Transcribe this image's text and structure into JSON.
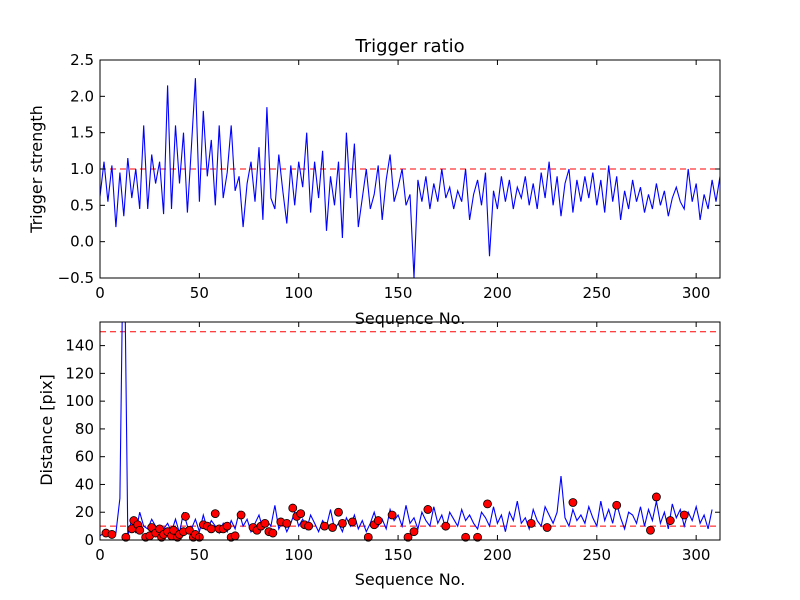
{
  "figure_colors": {
    "line": "#0000ff",
    "threshold": "#ff0000",
    "marker_fill": "#ff0000",
    "marker_edge": "#000000",
    "axis": "#000000"
  },
  "chart_data": [
    {
      "type": "line",
      "title": "Trigger ratio",
      "xlabel": "Sequence No.",
      "ylabel": "Trigger strength",
      "xlim": [
        0,
        312
      ],
      "ylim": [
        -0.5,
        2.5
      ],
      "xticks": [
        0,
        50,
        100,
        150,
        200,
        250,
        300
      ],
      "yticks": [
        -0.5,
        0.0,
        0.5,
        1.0,
        1.5,
        2.0,
        2.5
      ],
      "xtick_labels": [
        "0",
        "50",
        "100",
        "150",
        "200",
        "250",
        "300"
      ],
      "ytick_labels": [
        "−0.5",
        "0.0",
        "0.5",
        "1.0",
        "1.5",
        "2.0",
        "2.5"
      ],
      "threshold": 1.0,
      "series": [
        {
          "name": "trigger strength",
          "x_start": 0,
          "x_step": 2,
          "values": [
            0.62,
            1.1,
            0.55,
            1.05,
            0.2,
            0.95,
            0.35,
            1.15,
            0.6,
            1.0,
            0.45,
            1.6,
            0.45,
            1.2,
            0.8,
            1.1,
            0.38,
            2.15,
            0.45,
            1.6,
            0.8,
            1.5,
            0.4,
            1.3,
            2.25,
            0.55,
            1.8,
            0.9,
            1.4,
            0.5,
            1.6,
            0.6,
            0.95,
            1.6,
            0.7,
            0.9,
            0.2,
            0.8,
            1.1,
            0.55,
            1.3,
            0.3,
            1.85,
            0.6,
            0.45,
            1.2,
            0.7,
            0.25,
            1.05,
            0.5,
            1.1,
            0.75,
            1.5,
            0.4,
            1.1,
            0.6,
            1.25,
            0.15,
            0.9,
            0.5,
            1.1,
            0.05,
            1.5,
            0.6,
            1.35,
            0.2,
            0.6,
            1.0,
            0.45,
            0.65,
            1.05,
            0.3,
            0.85,
            1.2,
            0.55,
            0.75,
            1.0,
            0.5,
            0.65,
            -0.5,
            0.85,
            0.55,
            0.9,
            0.45,
            0.8,
            0.55,
            1.0,
            0.6,
            0.75,
            0.45,
            0.7,
            0.55,
            1.0,
            0.3,
            0.65,
            0.85,
            0.5,
            0.95,
            -0.2,
            0.7,
            0.45,
            0.9,
            0.55,
            0.85,
            0.45,
            0.75,
            0.6,
            0.9,
            0.5,
            0.8,
            0.45,
            0.95,
            0.6,
            1.1,
            0.5,
            0.9,
            0.35,
            0.8,
            1.0,
            0.4,
            0.85,
            0.55,
            0.9,
            0.6,
            0.95,
            0.5,
            0.85,
            0.4,
            1.05,
            0.55,
            0.9,
            0.3,
            0.7,
            0.45,
            0.85,
            0.55,
            0.75,
            0.4,
            0.65,
            0.45,
            0.8,
            0.5,
            0.7,
            0.35,
            0.6,
            0.75,
            0.55,
            0.45,
            1.0,
            0.55,
            0.8,
            0.3,
            0.65,
            0.45,
            0.85,
            0.55,
            0.9
          ]
        }
      ]
    },
    {
      "type": "line",
      "title": "",
      "xlabel": "Sequence No.",
      "ylabel": "Distance [pix]",
      "xlim": [
        0,
        312
      ],
      "ylim": [
        0,
        157
      ],
      "xticks": [
        0,
        50,
        100,
        150,
        200,
        250,
        300
      ],
      "yticks": [
        0,
        20,
        40,
        60,
        80,
        100,
        120,
        140
      ],
      "xtick_labels": [
        "0",
        "50",
        "100",
        "150",
        "200",
        "250",
        "300"
      ],
      "ytick_labels": [
        "0",
        "20",
        "40",
        "60",
        "80",
        "100",
        "120",
        "140"
      ],
      "thresholds": [
        10,
        150
      ],
      "series": [
        {
          "name": "distance",
          "x_start": 0,
          "x_step": 2,
          "values": [
            3,
            5,
            5,
            4,
            5,
            30,
            250,
            3,
            15,
            5,
            20,
            10,
            8,
            15,
            10,
            6,
            8,
            12,
            6,
            15,
            5,
            20,
            10,
            8,
            15,
            6,
            18,
            8,
            14,
            10,
            5,
            12,
            6,
            14,
            8,
            20,
            10,
            15,
            6,
            12,
            18,
            8,
            14,
            10,
            25,
            8,
            14,
            6,
            12,
            20,
            10,
            15,
            8,
            18,
            12,
            6,
            14,
            10,
            22,
            8,
            12,
            6,
            16,
            10,
            18,
            8,
            14,
            6,
            12,
            20,
            10,
            15,
            8,
            22,
            14,
            18,
            10,
            25,
            12,
            16,
            8,
            20,
            14,
            10,
            24,
            12,
            18,
            8,
            20,
            15,
            10,
            22,
            14,
            18,
            12,
            8,
            20,
            16,
            10,
            24,
            12,
            18,
            6,
            20,
            14,
            28,
            12,
            16,
            8,
            22,
            14,
            10,
            24,
            18,
            12,
            20,
            46,
            16,
            10,
            22,
            14,
            18,
            12,
            24,
            16,
            10,
            28,
            14,
            22,
            12,
            26,
            16,
            8,
            20,
            18,
            12,
            24,
            10,
            22,
            14,
            28,
            12,
            20,
            8,
            26,
            16,
            22,
            10,
            20,
            14,
            24,
            12,
            18,
            8,
            22
          ]
        },
        {
          "name": "below threshold markers",
          "points": [
            [
              3,
              5
            ],
            [
              6,
              4
            ],
            [
              13,
              2
            ],
            [
              16,
              8
            ],
            [
              17,
              14
            ],
            [
              19,
              11
            ],
            [
              20,
              7
            ],
            [
              23,
              2
            ],
            [
              25,
              3
            ],
            [
              26,
              9
            ],
            [
              28,
              5
            ],
            [
              30,
              8
            ],
            [
              31,
              2
            ],
            [
              32,
              4
            ],
            [
              34,
              6
            ],
            [
              36,
              3
            ],
            [
              37,
              7
            ],
            [
              39,
              2
            ],
            [
              40,
              4
            ],
            [
              42,
              6
            ],
            [
              43,
              17
            ],
            [
              45,
              7
            ],
            [
              47,
              2
            ],
            [
              48,
              4
            ],
            [
              50,
              2
            ],
            [
              52,
              11
            ],
            [
              54,
              10
            ],
            [
              56,
              8
            ],
            [
              58,
              19
            ],
            [
              60,
              8
            ],
            [
              62,
              8
            ],
            [
              64,
              10
            ],
            [
              66,
              2
            ],
            [
              68,
              3
            ],
            [
              71,
              18
            ],
            [
              77,
              9
            ],
            [
              79,
              7
            ],
            [
              81,
              10
            ],
            [
              83,
              12
            ],
            [
              85,
              6
            ],
            [
              87,
              5
            ],
            [
              91,
              13
            ],
            [
              94,
              12
            ],
            [
              97,
              23
            ],
            [
              99,
              17
            ],
            [
              101,
              19
            ],
            [
              103,
              11
            ],
            [
              105,
              10
            ],
            [
              113,
              10
            ],
            [
              117,
              9
            ],
            [
              120,
              20
            ],
            [
              122,
              12
            ],
            [
              127,
              13
            ],
            [
              135,
              2
            ],
            [
              138,
              11
            ],
            [
              140,
              14
            ],
            [
              147,
              18
            ],
            [
              155,
              2
            ],
            [
              158,
              6
            ],
            [
              165,
              22
            ],
            [
              174,
              10
            ],
            [
              184,
              2
            ],
            [
              190,
              2
            ],
            [
              195,
              26
            ],
            [
              217,
              12
            ],
            [
              225,
              9
            ],
            [
              238,
              27
            ],
            [
              260,
              25
            ],
            [
              277,
              7
            ],
            [
              280,
              31
            ],
            [
              287,
              14
            ],
            [
              294,
              18
            ]
          ]
        }
      ]
    }
  ]
}
